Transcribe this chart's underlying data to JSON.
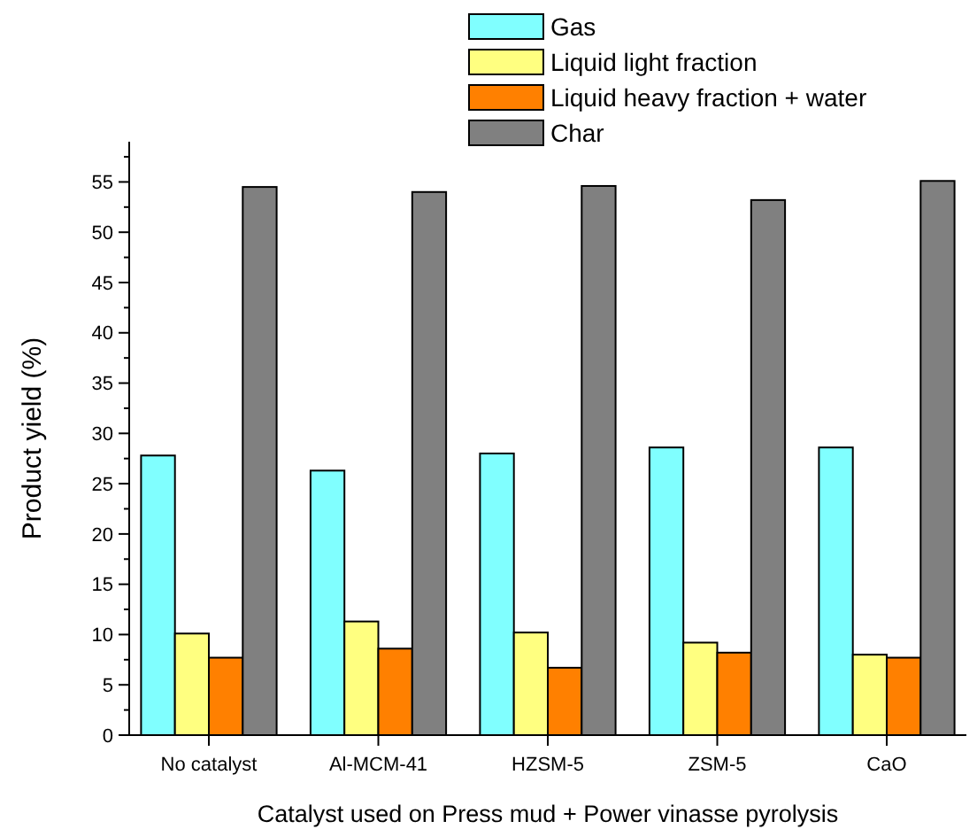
{
  "chart_data": {
    "type": "bar",
    "xlabel": "Catalyst used on Press mud + Power vinasse pyrolysis",
    "ylabel": "Product yield (%)",
    "categories": [
      "No catalyst",
      "Al-MCM-41",
      "HZSM-5",
      "ZSM-5",
      "CaO"
    ],
    "series": [
      {
        "name": "Gas",
        "color": "#80ffff",
        "values": [
          27.8,
          26.3,
          28.0,
          28.6,
          28.6
        ]
      },
      {
        "name": "Liquid light fraction",
        "color": "#ffff80",
        "values": [
          10.1,
          11.3,
          10.2,
          9.2,
          8.0
        ]
      },
      {
        "name": "Liquid heavy fraction + water",
        "color": "#ff8000",
        "values": [
          7.7,
          8.6,
          6.7,
          8.2,
          7.7
        ]
      },
      {
        "name": "Char",
        "color": "#808080",
        "values": [
          54.5,
          54.0,
          54.6,
          53.2,
          55.1
        ]
      }
    ],
    "ylim": [
      0,
      59
    ],
    "yticks": [
      0,
      {
        "value": 2.5,
        "label": null
      },
      5,
      {
        "value": 7.5,
        "label": null
      },
      10,
      {
        "value": 12.5,
        "label": null
      },
      15,
      {
        "value": 17.5,
        "label": null
      },
      20,
      {
        "value": 22.5,
        "label": null
      },
      25,
      {
        "value": 27.5,
        "label": null
      },
      30,
      {
        "value": 32.5,
        "label": null
      },
      35,
      {
        "value": 37.5,
        "label": null
      },
      40,
      {
        "value": 42.5,
        "label": null
      },
      45,
      {
        "value": 47.5,
        "label": null
      },
      50,
      {
        "value": 52.5,
        "label": null
      },
      55,
      {
        "value": 57.5,
        "label": null
      }
    ],
    "grid": false,
    "legend": "top right"
  }
}
